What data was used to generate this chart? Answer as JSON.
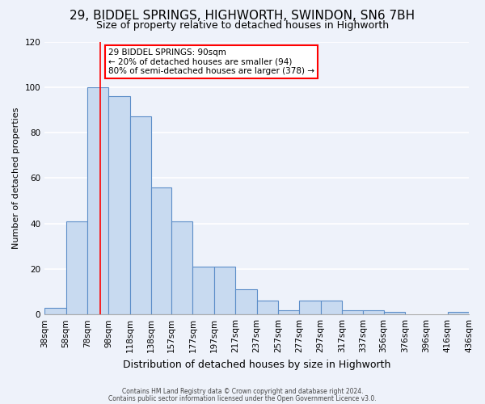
{
  "title": "29, BIDDEL SPRINGS, HIGHWORTH, SWINDON, SN6 7BH",
  "subtitle": "Size of property relative to detached houses in Highworth",
  "xlabel": "Distribution of detached houses by size in Highworth",
  "ylabel": "Number of detached properties",
  "bin_labels": [
    "38sqm",
    "58sqm",
    "78sqm",
    "98sqm",
    "118sqm",
    "138sqm",
    "157sqm",
    "177sqm",
    "197sqm",
    "217sqm",
    "237sqm",
    "257sqm",
    "277sqm",
    "297sqm",
    "317sqm",
    "337sqm",
    "356sqm",
    "376sqm",
    "396sqm",
    "416sqm",
    "436sqm"
  ],
  "bin_edges": [
    38,
    58,
    78,
    98,
    118,
    138,
    157,
    177,
    197,
    217,
    237,
    257,
    277,
    297,
    317,
    337,
    356,
    376,
    396,
    416,
    436
  ],
  "bar_heights": [
    3,
    41,
    100,
    96,
    87,
    56,
    41,
    21,
    21,
    11,
    6,
    2,
    6,
    6,
    2,
    2,
    1,
    0,
    0,
    1
  ],
  "bar_color": "#c8daf0",
  "bar_edge_color": "#5b8dc8",
  "red_line_x": 90,
  "annotation_line1": "29 BIDDEL SPRINGS: 90sqm",
  "annotation_line2": "← 20% of detached houses are smaller (94)",
  "annotation_line3": "80% of semi-detached houses are larger (378) →",
  "annotation_box_color": "white",
  "annotation_box_edge_color": "red",
  "ylim": [
    0,
    120
  ],
  "footnote1": "Contains HM Land Registry data © Crown copyright and database right 2024.",
  "footnote2": "Contains public sector information licensed under the Open Government Licence v3.0.",
  "background_color": "#eef2fa",
  "grid_color": "white",
  "title_fontsize": 11,
  "subtitle_fontsize": 9,
  "xlabel_fontsize": 9,
  "ylabel_fontsize": 8,
  "tick_fontsize": 7.5,
  "annotation_fontsize": 7.5,
  "footnote_fontsize": 5.5
}
